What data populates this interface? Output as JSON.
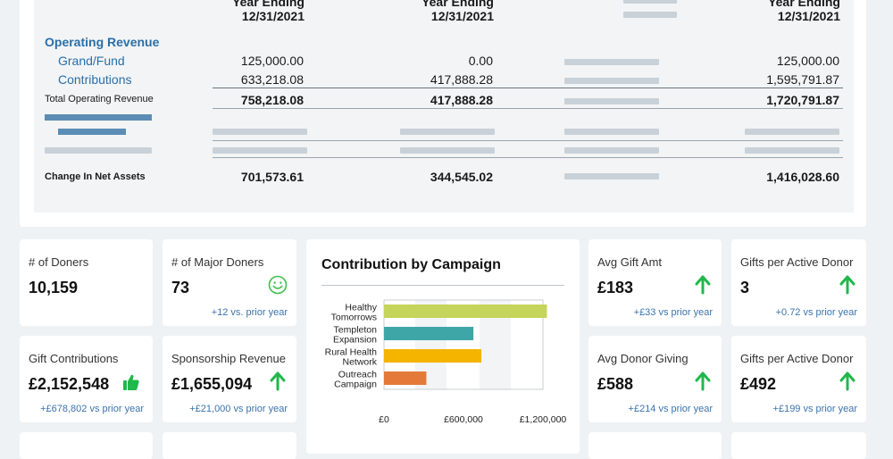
{
  "statement": {
    "columns": [
      {
        "line1": "Year Ending",
        "line2": "12/31/2021"
      },
      {
        "line1": "Year Ending",
        "line2": "12/31/2021"
      },
      {
        "line1": "Year Ending",
        "line2": "12/31/2021"
      }
    ],
    "section_title": "Operating Revenue",
    "rows": [
      {
        "label": "Grand/Fund",
        "c1": "125,000.00",
        "c2": "0.00",
        "c4": "125,000.00"
      },
      {
        "label": "Contributions",
        "c1": "633,218.08",
        "c2": "417,888.28",
        "c4": "1,595,791.87"
      }
    ],
    "total_row": {
      "label": "Total Operating Revenue",
      "c1": "758,218.08",
      "c2": "417,888.28",
      "c4": "1,720,791.87"
    },
    "net_row": {
      "label": "Change In Net Assets",
      "c1": "701,573.61",
      "c2": "344,545.02",
      "c4": "1,416,028.60"
    }
  },
  "kpis": {
    "doners": {
      "label": "# of Doners",
      "value": "10,159"
    },
    "major_doners": {
      "label": "# of Major Doners",
      "value": "73",
      "delta": "+12 vs. prior year",
      "icon": "smiley-icon"
    },
    "avg_gift": {
      "label": "Avg Gift Amt",
      "value": "£183",
      "delta": "+£33 vs prior year",
      "icon": "arrow-up-icon"
    },
    "gifts_active_1": {
      "label": "Gifts per Active Donor",
      "value": "3",
      "delta": "+0.72 vs prior year",
      "icon": "arrow-up-icon"
    },
    "gift_contrib": {
      "label": "Gift Contributions",
      "value": "£2,152,548",
      "delta": "+£678,802 vs prior year",
      "icon": "thumbs-up-icon"
    },
    "sponsorship": {
      "label": "Sponsorship Revenue",
      "value": "£1,655,094",
      "delta": "+£21,000 vs prior year",
      "icon": "arrow-up-icon"
    },
    "avg_donor": {
      "label": "Avg Donor Giving",
      "value": "£588",
      "delta": "+£214 vs prior year",
      "icon": "arrow-up-icon"
    },
    "gifts_active_2": {
      "label": "Gifts per Active Donor",
      "value": "£492",
      "delta": "+£199 vs prior year",
      "icon": "arrow-up-icon"
    }
  },
  "colors": {
    "up": "#1fb84a",
    "smiley": "#3cbf4c",
    "link": "#2a6fa8"
  },
  "chart_data": {
    "type": "bar",
    "orientation": "horizontal",
    "title": "Contribution by Campaign",
    "categories": [
      {
        "line1": "Healthy",
        "line2": "Tomorrows"
      },
      {
        "line1": "Templeton",
        "line2": "Expansion"
      },
      {
        "line1": "Rural Health",
        "line2": "Network"
      },
      {
        "line1": "Outreach",
        "line2": "Campaign"
      }
    ],
    "values": [
      1230000,
      675000,
      735000,
      320000
    ],
    "colors": [
      "#c5d45a",
      "#3fa6a8",
      "#f4b400",
      "#e47a3a"
    ],
    "xlim": [
      0,
      1200000
    ],
    "xticks": [
      "£0",
      "£600,000",
      "£1,200,000"
    ],
    "grid": false,
    "xlabel": "",
    "ylabel": ""
  }
}
